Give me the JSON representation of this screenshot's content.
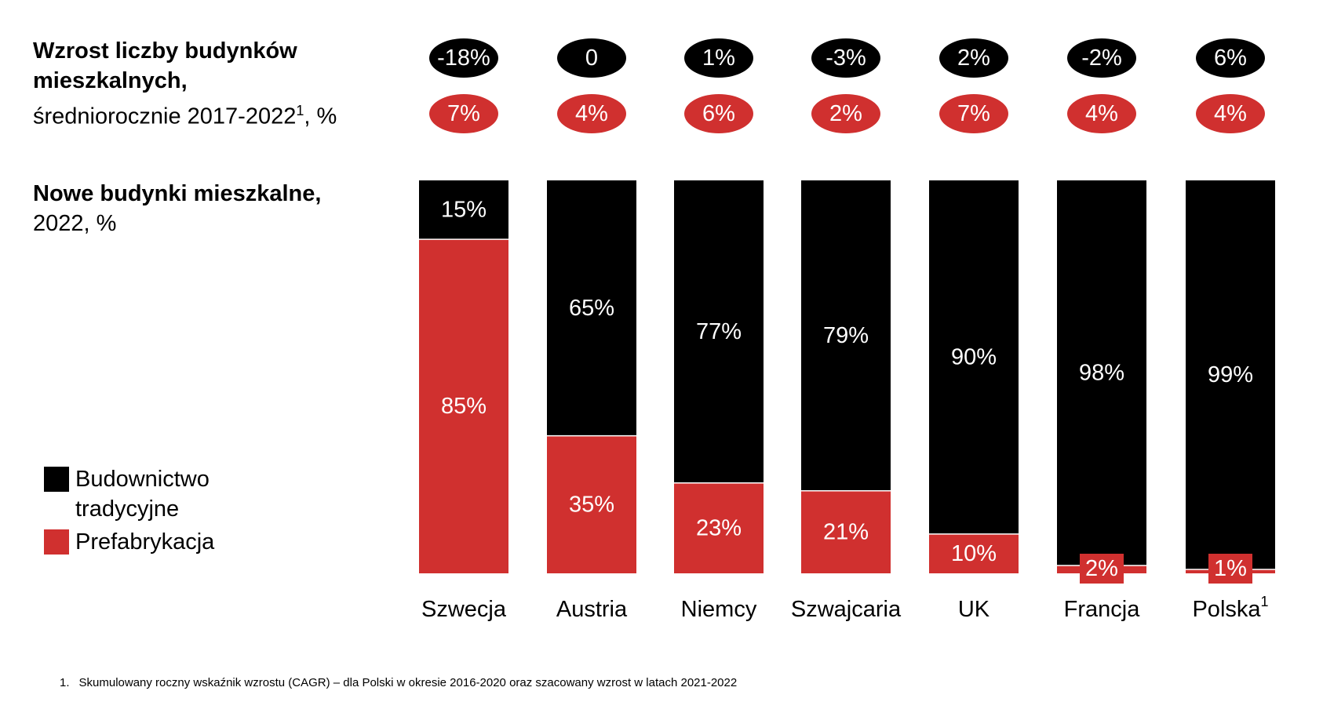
{
  "growth_title": {
    "bold": "Wzrost liczby budynków mieszkalnych,",
    "normal": "średniorocznie 2017-2022",
    "sup": "1",
    "tail": ", %"
  },
  "share_title": {
    "bold": "Nowe budynki mieszkalne,",
    "normal": "2022, %"
  },
  "legend": [
    {
      "label": "Budownictwo tradycyjne",
      "color": "#000000"
    },
    {
      "label": "Prefabrykacja",
      "color": "#d0302f"
    }
  ],
  "footnote": {
    "number": "1.",
    "text": "Skumulowany roczny wskaźnik wzrostu (CAGR) – dla Polski w okresie 2016-2020 oraz szacowany wzrost w latach 2021-2022"
  },
  "chart_data": {
    "type": "bar",
    "stacked": true,
    "categories": [
      "Szwecja",
      "Austria",
      "Niemcy",
      "Szwajcaria",
      "UK",
      "Francja",
      "Polska"
    ],
    "category_superscripts": [
      "",
      "",
      "",
      "",
      "",
      "",
      "1"
    ],
    "series": [
      {
        "name": "Prefabrykacja",
        "color": "#d0302f",
        "values": [
          85,
          35,
          23,
          21,
          10,
          2,
          1
        ],
        "labels": [
          "85%",
          "35%",
          "23%",
          "21%",
          "10%",
          "2%",
          "1%"
        ]
      },
      {
        "name": "Budownictwo tradycyjne",
        "color": "#000000",
        "values": [
          15,
          65,
          77,
          79,
          90,
          98,
          99
        ],
        "labels": [
          "15%",
          "65%",
          "77%",
          "79%",
          "90%",
          "98%",
          "99%"
        ]
      }
    ],
    "growth_traditional": [
      "-18%",
      "0",
      "1%",
      "-3%",
      "2%",
      "-2%",
      "6%"
    ],
    "growth_prefab": [
      "7%",
      "4%",
      "6%",
      "2%",
      "7%",
      "4%",
      "4%"
    ],
    "ylim": [
      0,
      100
    ]
  }
}
